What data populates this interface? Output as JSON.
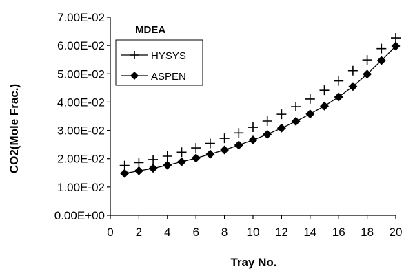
{
  "chart_data": {
    "type": "line",
    "title": "",
    "legend_title": "MDEA",
    "legend_placement": "top-left",
    "xlabel": "Tray No.",
    "ylabel": "CO2(Mole Frac.)",
    "xlim": [
      0,
      20
    ],
    "ylim": [
      0,
      0.07
    ],
    "x_ticks": [
      "0",
      "2",
      "4",
      "6",
      "8",
      "10",
      "12",
      "14",
      "16",
      "18",
      "20"
    ],
    "y_ticks": [
      "0.00E+00",
      "1.00E-02",
      "2.00E-02",
      "3.00E-02",
      "4.00E-02",
      "5.00E-02",
      "6.00E-02",
      "7.00E-02"
    ],
    "grid": false,
    "x": [
      1,
      2,
      3,
      4,
      5,
      6,
      7,
      8,
      9,
      10,
      11,
      12,
      13,
      14,
      15,
      16,
      17,
      18,
      19,
      20
    ],
    "series": [
      {
        "name": "HYSYS",
        "marker": "plus",
        "color": "#000000",
        "values": [
          0.0176,
          0.0186,
          0.0197,
          0.0209,
          0.0223,
          0.0238,
          0.0254,
          0.0272,
          0.0291,
          0.0311,
          0.0333,
          0.0357,
          0.0384,
          0.0411,
          0.0442,
          0.0475,
          0.0511,
          0.0549,
          0.0589,
          0.0627
        ]
      },
      {
        "name": "ASPEN",
        "marker": "diamond",
        "color": "#000000",
        "values": [
          0.0148,
          0.0157,
          0.0166,
          0.0177,
          0.0189,
          0.0202,
          0.0216,
          0.0231,
          0.0248,
          0.0266,
          0.0286,
          0.0308,
          0.0332,
          0.0358,
          0.0386,
          0.0418,
          0.0455,
          0.0499,
          0.0547,
          0.0598
        ]
      }
    ]
  }
}
